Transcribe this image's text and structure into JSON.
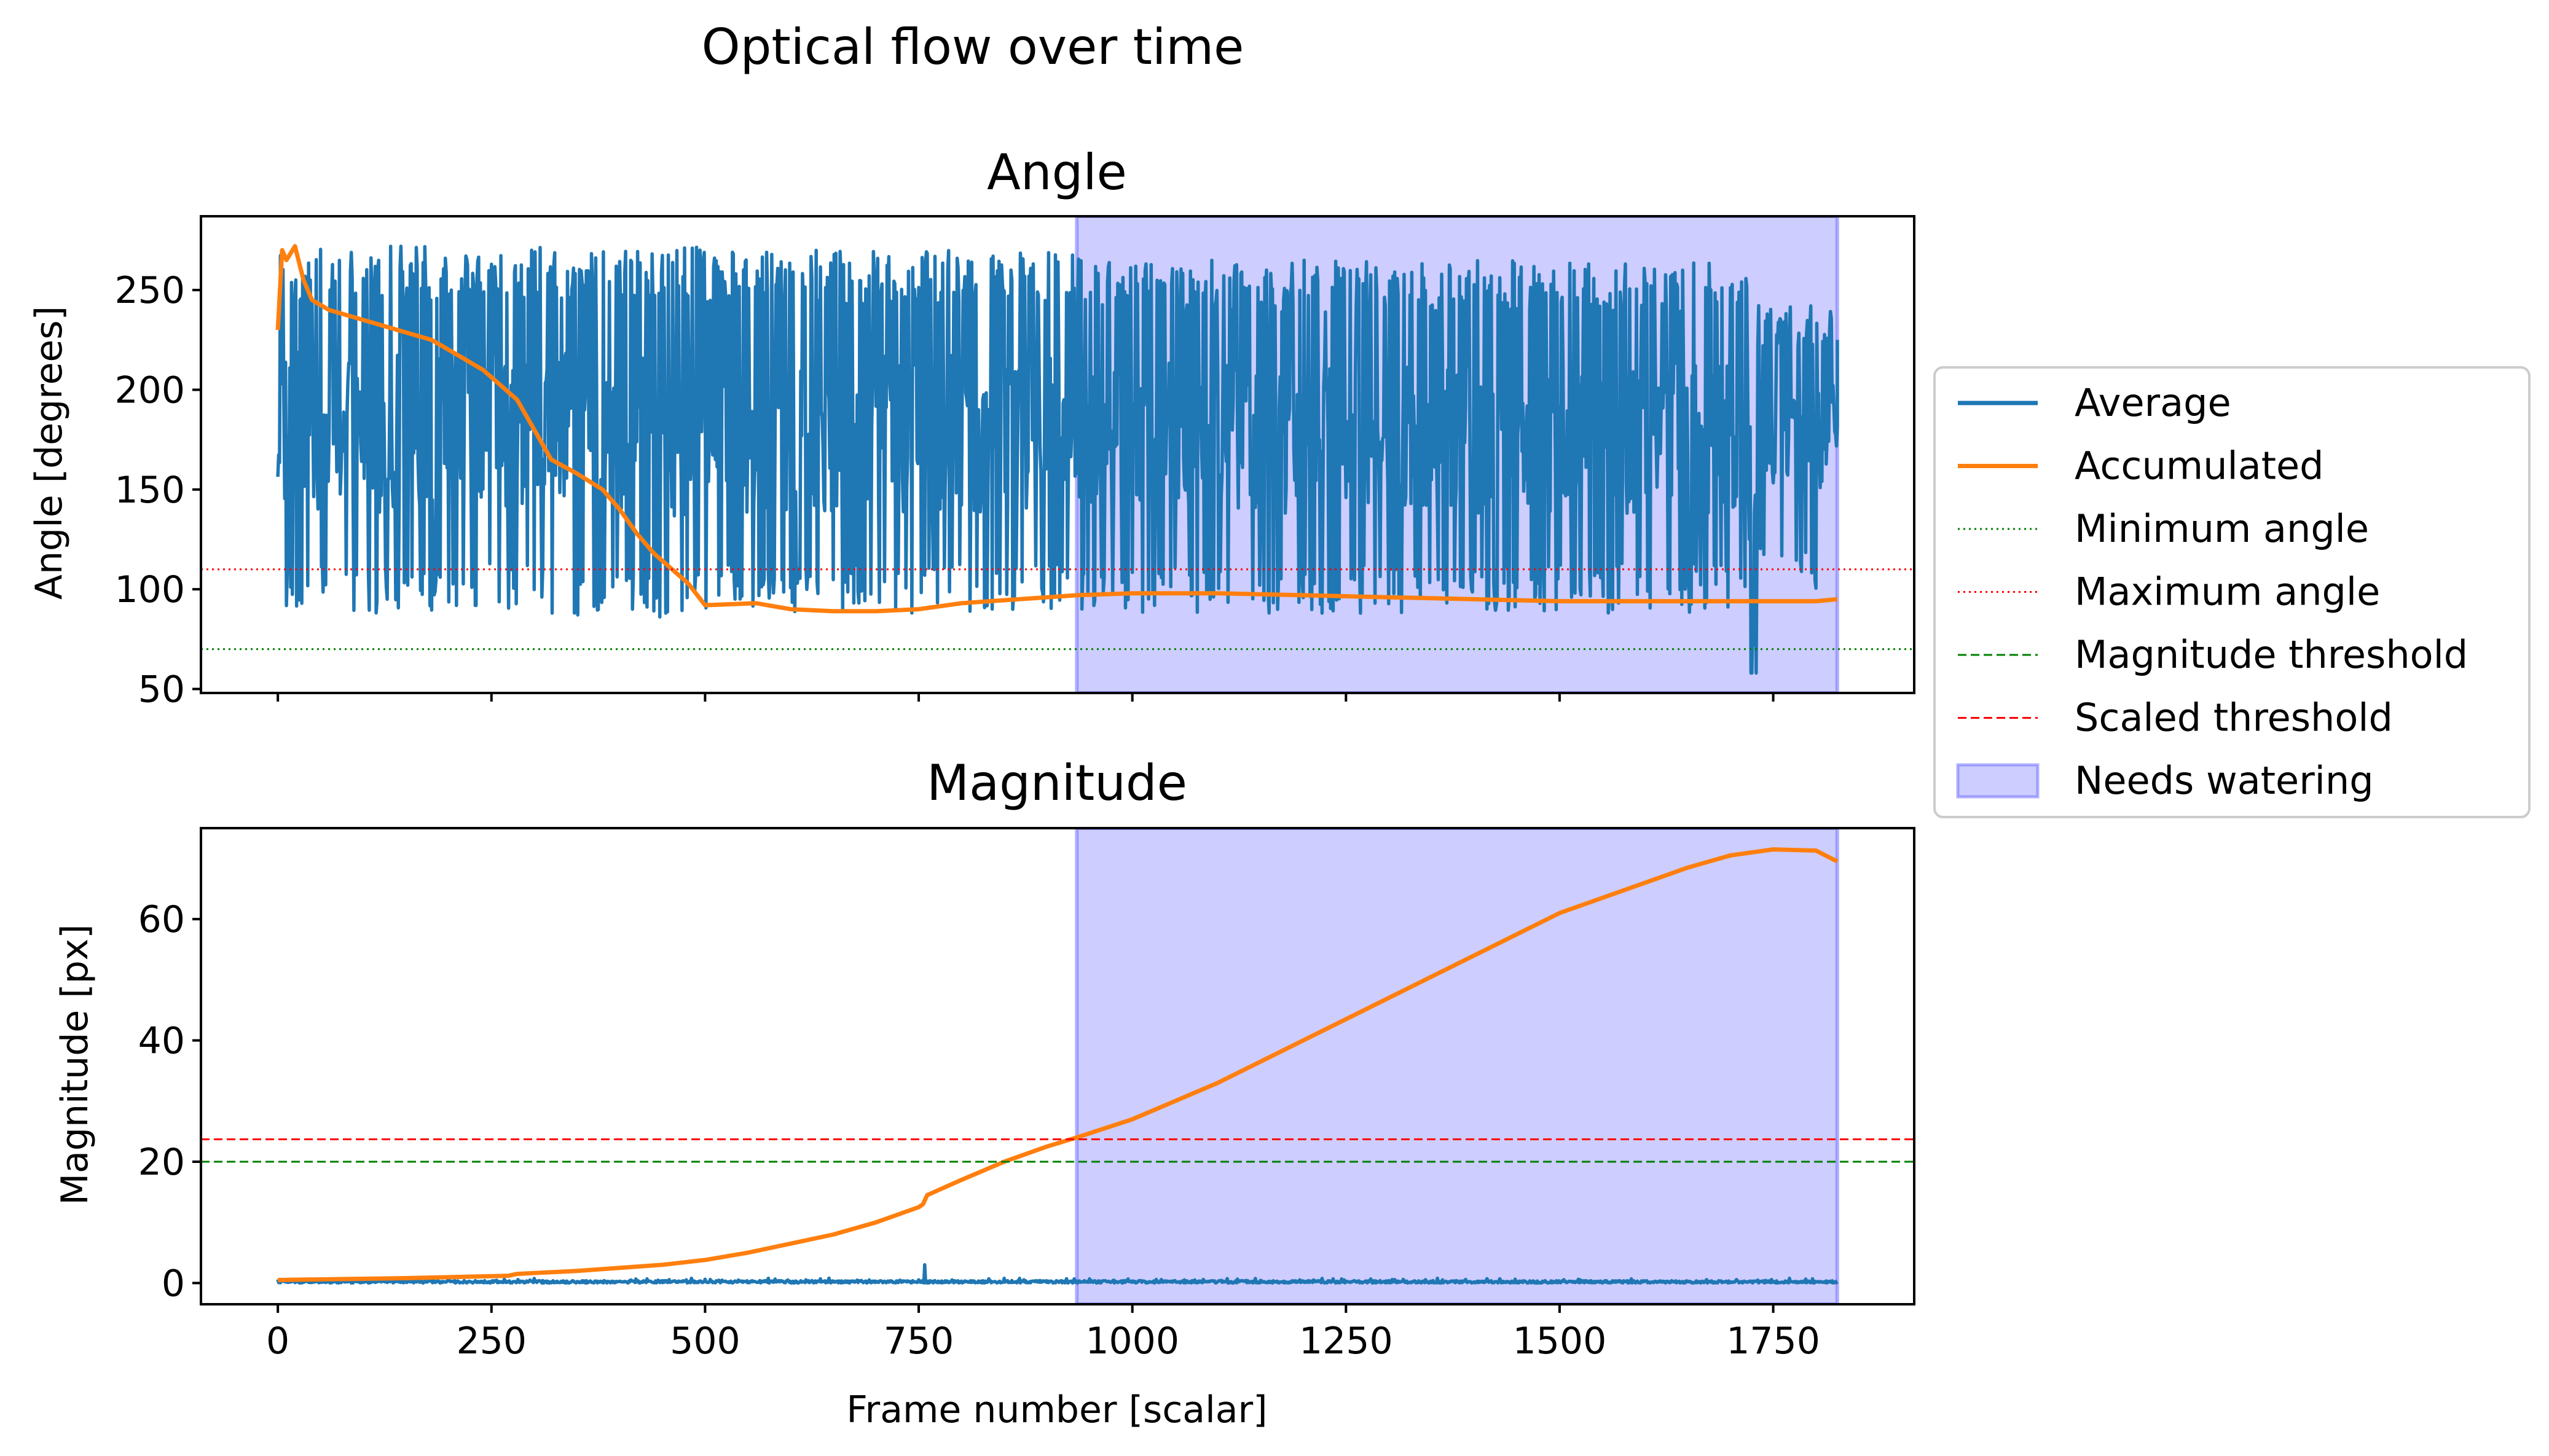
{
  "figure": {
    "suptitle": "Optical flow over time"
  },
  "colors": {
    "average": "#1f77b4",
    "accumulated": "#ff7f0e",
    "min_angle": "#008000",
    "max_angle": "#ff0000",
    "magnitude_threshold": "#008000",
    "scaled_threshold": "#ff0000",
    "needs_watering": "#6666ff"
  },
  "legend": {
    "placement": "right, outside axes",
    "entries": [
      {
        "key": "average",
        "label": "Average",
        "style": "solid-line"
      },
      {
        "key": "accumulated",
        "label": "Accumulated",
        "style": "solid-line"
      },
      {
        "key": "min_angle",
        "label": "Minimum angle",
        "style": "dotted-line"
      },
      {
        "key": "max_angle",
        "label": "Maximum angle",
        "style": "dotted-line"
      },
      {
        "key": "magnitude_threshold",
        "label": "Magnitude threshold",
        "style": "dashed-line"
      },
      {
        "key": "scaled_threshold",
        "label": "Scaled threshold",
        "style": "dashed-line"
      },
      {
        "key": "needs_watering",
        "label": "Needs watering",
        "style": "patch"
      }
    ]
  },
  "chart_data": [
    {
      "type": "line",
      "title": "Angle",
      "xlabel": "",
      "ylabel": "Angle [degrees]",
      "xlim": [
        -90,
        1915
      ],
      "ylim": [
        48,
        287
      ],
      "xticks": [
        0,
        250,
        500,
        750,
        1000,
        1250,
        1500,
        1750
      ],
      "show_xtick_labels": false,
      "yticks": [
        50,
        100,
        150,
        200,
        250
      ],
      "grid": false,
      "hlines": [
        {
          "name": "Minimum angle",
          "y": 70,
          "style": "dotted",
          "color": "#008000"
        },
        {
          "name": "Maximum angle",
          "y": 110,
          "style": "dotted",
          "color": "#ff0000"
        }
      ],
      "span": {
        "name": "Needs watering",
        "x0": 935,
        "x1": 1825
      },
      "series": [
        {
          "name": "Average",
          "kind": "noisy",
          "x_range": [
            0,
            1825
          ],
          "segments": [
            {
              "x": [
                0,
                50
              ],
              "low": 90,
              "high": 272
            },
            {
              "x": [
                50,
                350
              ],
              "low": 88,
              "high": 272
            },
            {
              "x": [
                350,
                500
              ],
              "low": 86,
              "high": 272
            },
            {
              "x": [
                500,
                940
              ],
              "low": 88,
              "high": 270
            },
            {
              "x": [
                940,
                1720
              ],
              "low": 88,
              "high": 265
            },
            {
              "x": [
                1720,
                1730
              ],
              "low": 58,
              "high": 200
            },
            {
              "x": [
                1730,
                1825
              ],
              "low": 100,
              "high": 243
            }
          ],
          "end": [
            1825,
            225
          ]
        },
        {
          "name": "Accumulated",
          "x": [
            0,
            5,
            10,
            20,
            30,
            40,
            60,
            100,
            140,
            180,
            200,
            240,
            280,
            300,
            320,
            350,
            380,
            400,
            420,
            440,
            480,
            500,
            560,
            600,
            650,
            700,
            750,
            800,
            900,
            935,
            1000,
            1100,
            1200,
            1300,
            1400,
            1500,
            1600,
            1700,
            1800,
            1825
          ],
          "y": [
            230,
            270,
            265,
            272,
            255,
            245,
            240,
            235,
            230,
            225,
            220,
            210,
            195,
            180,
            165,
            158,
            150,
            140,
            128,
            118,
            103,
            92,
            93,
            90,
            89,
            89,
            90,
            93,
            96,
            97,
            98,
            98,
            97,
            96,
            95,
            94,
            94,
            94,
            94,
            95
          ]
        }
      ]
    },
    {
      "type": "line",
      "title": "Magnitude",
      "xlabel": "Frame number [scalar]",
      "ylabel": "Magnitude [px]",
      "xlim": [
        -90,
        1915
      ],
      "ylim": [
        -3.5,
        75
      ],
      "xticks": [
        0,
        250,
        500,
        750,
        1000,
        1250,
        1500,
        1750
      ],
      "show_xtick_labels": true,
      "yticks": [
        0,
        20,
        40,
        60
      ],
      "grid": false,
      "hlines": [
        {
          "name": "Magnitude threshold",
          "y": 20,
          "style": "dashed",
          "color": "#008000"
        },
        {
          "name": "Scaled threshold",
          "y": 23.7,
          "style": "dashed",
          "color": "#ff0000"
        }
      ],
      "span": {
        "name": "Needs watering",
        "x0": 935,
        "x1": 1825
      },
      "series": [
        {
          "name": "Average",
          "kind": "noisy",
          "x_range": [
            0,
            1825
          ],
          "segments": [
            {
              "x": [
                0,
                1825
              ],
              "low": 0.0,
              "high": 0.8
            }
          ],
          "spikes": [
            {
              "x": 757,
              "y": 3.0
            }
          ]
        },
        {
          "name": "Accumulated",
          "x": [
            0,
            50,
            150,
            270,
            280,
            350,
            400,
            450,
            500,
            550,
            600,
            650,
            700,
            750,
            755,
            760,
            800,
            850,
            900,
            935,
            1000,
            1100,
            1200,
            1300,
            1400,
            1500,
            1600,
            1650,
            1700,
            1750,
            1800,
            1825
          ],
          "y": [
            0.5,
            0.6,
            0.8,
            1.2,
            1.5,
            2.0,
            2.5,
            3.0,
            3.8,
            5.0,
            6.5,
            8.0,
            10.0,
            12.5,
            13.0,
            14.5,
            17.0,
            20.0,
            22.5,
            24.0,
            27.0,
            33.0,
            40.0,
            47.0,
            54.0,
            61.0,
            66.0,
            68.5,
            70.5,
            71.5,
            71.3,
            69.5
          ]
        }
      ]
    }
  ]
}
